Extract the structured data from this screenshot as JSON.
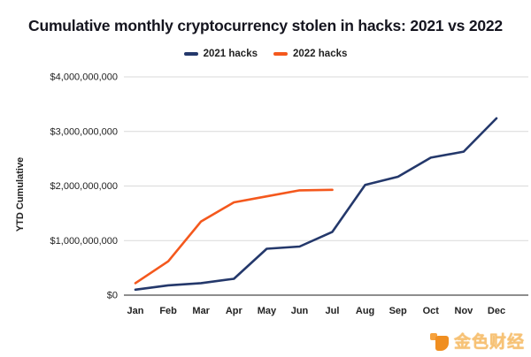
{
  "title": "Cumulative monthly cryptocurrency stolen in hacks: 2021 vs 2022",
  "watermark": {
    "text": "金色财经"
  },
  "chart_data": {
    "type": "line",
    "title": "Cumulative monthly cryptocurrency stolen in hacks: 2021 vs 2022",
    "xlabel": "",
    "ylabel": "YTD Cumulative",
    "categories": [
      "Jan",
      "Feb",
      "Mar",
      "Apr",
      "May",
      "Jun",
      "Jul",
      "Aug",
      "Sep",
      "Oct",
      "Nov",
      "Dec"
    ],
    "series": [
      {
        "name": "2021 hacks",
        "color": "#24386b",
        "values": [
          100000000,
          180000000,
          220000000,
          300000000,
          850000000,
          890000000,
          1160000000,
          2020000000,
          2170000000,
          2520000000,
          2630000000,
          3240000000
        ]
      },
      {
        "name": "2022 hacks",
        "color": "#f4581d",
        "values": [
          220000000,
          620000000,
          1350000000,
          1700000000,
          1810000000,
          1920000000,
          1930000000,
          null,
          null,
          null,
          null,
          null
        ]
      }
    ],
    "ylim": [
      0,
      4000000000
    ],
    "y_ticks": [
      {
        "value": 0,
        "label": "$0"
      },
      {
        "value": 1000000000,
        "label": "$1,000,000,000"
      },
      {
        "value": 2000000000,
        "label": "$2,000,000,000"
      },
      {
        "value": 3000000000,
        "label": "$3,000,000,000"
      },
      {
        "value": 4000000000,
        "label": "$4,000,000,000"
      }
    ],
    "grid": true,
    "legend_position": "top"
  }
}
